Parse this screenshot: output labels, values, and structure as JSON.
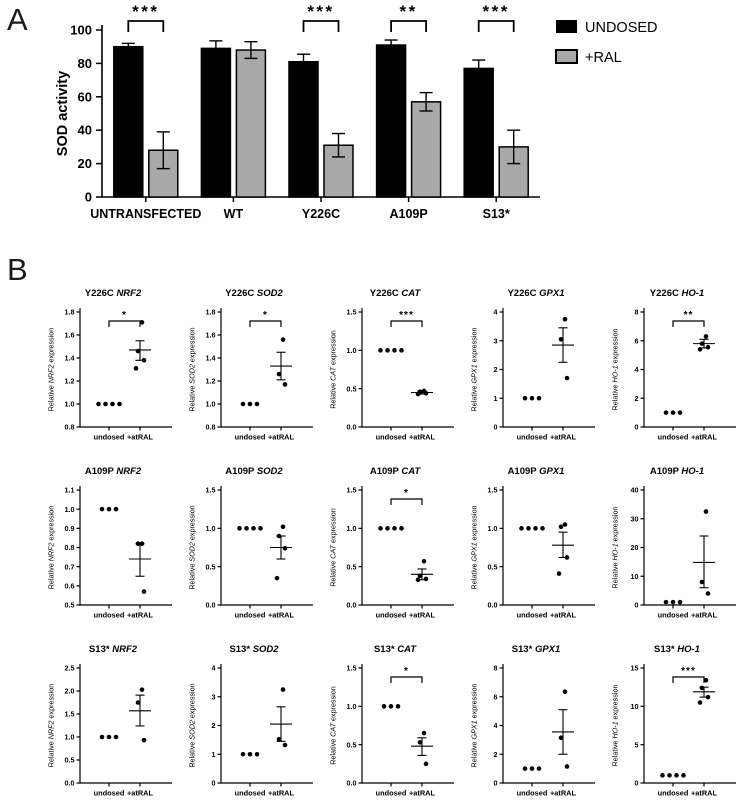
{
  "figure": {
    "panel_a_label": "A",
    "panel_b_label": "B"
  },
  "colors": {
    "undosed_fill": "#000000",
    "ral_fill": "#a9a9a9",
    "axis": "#000000",
    "background": "#ffffff"
  },
  "chart_data": [
    {
      "id": "sod-activity",
      "type": "bar",
      "ylabel": "SOD activity",
      "ylim": [
        0,
        100
      ],
      "yticks": [
        "0",
        "20",
        "40",
        "60",
        "80",
        "100"
      ],
      "categories": [
        "UNTRANSFECTED",
        "WT",
        "Y226C",
        "A109P",
        "S13*"
      ],
      "series": [
        {
          "name": "UNDOSED",
          "fill": "#000000",
          "values": [
            90,
            89,
            81,
            91,
            77
          ],
          "errors": [
            2,
            4.5,
            4.5,
            3,
            5
          ]
        },
        {
          "name": "+RAL",
          "fill": "#a9a9a9",
          "values": [
            28,
            88,
            31,
            57,
            30
          ],
          "errors": [
            11,
            5,
            7,
            5.5,
            10
          ]
        }
      ],
      "legend_position": "right",
      "significance": [
        {
          "category": "UNTRANSFECTED",
          "label": "***"
        },
        {
          "category": "Y226C",
          "label": "***"
        },
        {
          "category": "A109P",
          "label": "**"
        },
        {
          "category": "S13*",
          "label": "***"
        }
      ]
    },
    {
      "type": "scatter",
      "variant": "Y226C",
      "gene": "NRF2",
      "ylabel": "Relative NRF2 expression",
      "ylim": [
        0.8,
        1.8
      ],
      "yticks": [
        "0.8",
        "1.0",
        "1.2",
        "1.4",
        "1.6",
        "1.8"
      ],
      "categories": [
        "undosed",
        "+atRAL"
      ],
      "groups": [
        {
          "name": "undosed",
          "points": [
            1.0,
            1.0,
            1.0,
            1.0
          ]
        },
        {
          "name": "+atRAL",
          "points": [
            1.71,
            1.46,
            1.38,
            1.31
          ],
          "mean": 1.47,
          "sem": [
            1.38,
            1.55
          ]
        }
      ],
      "significance": "*"
    },
    {
      "type": "scatter",
      "variant": "Y226C",
      "gene": "SOD2",
      "ylabel": "Relative SOD2 expression",
      "ylim": [
        0.8,
        1.8
      ],
      "yticks": [
        "0.8",
        "1.0",
        "1.2",
        "1.4",
        "1.6",
        "1.8"
      ],
      "categories": [
        "undosed",
        "+atRAL"
      ],
      "groups": [
        {
          "name": "undosed",
          "points": [
            1.0,
            1.0,
            1.0
          ]
        },
        {
          "name": "+atRAL",
          "points": [
            1.56,
            1.26,
            1.17
          ],
          "mean": 1.33,
          "sem": [
            1.21,
            1.45
          ]
        }
      ],
      "significance": "*"
    },
    {
      "type": "scatter",
      "variant": "Y226C",
      "gene": "CAT",
      "ylabel": "Relative CAT expression",
      "ylim": [
        0,
        1.5
      ],
      "yticks": [
        "0.0",
        "0.5",
        "1.0",
        "1.5"
      ],
      "categories": [
        "undosed",
        "+atRAL"
      ],
      "groups": [
        {
          "name": "undosed",
          "points": [
            1.0,
            1.0,
            1.0,
            1.0
          ]
        },
        {
          "name": "+atRAL",
          "points": [
            0.47,
            0.46,
            0.44,
            0.43
          ],
          "mean": 0.45,
          "sem": [
            0.43,
            0.47
          ]
        }
      ],
      "significance": "***"
    },
    {
      "type": "scatter",
      "variant": "Y226C",
      "gene": "GPX1",
      "ylabel": "Relative GPX1 expression",
      "ylim": [
        0,
        4
      ],
      "yticks": [
        "0",
        "1",
        "2",
        "3",
        "4"
      ],
      "categories": [
        "undosed",
        "+atRAL"
      ],
      "groups": [
        {
          "name": "undosed",
          "points": [
            1.0,
            1.0,
            1.0
          ]
        },
        {
          "name": "+atRAL",
          "points": [
            3.75,
            3.05,
            1.7
          ],
          "mean": 2.85,
          "sem": [
            2.25,
            3.45
          ]
        }
      ],
      "significance": null
    },
    {
      "type": "scatter",
      "variant": "Y226C",
      "gene": "HO-1",
      "ylabel": "Relative HO-1 expression",
      "ylim": [
        0,
        8
      ],
      "yticks": [
        "0",
        "2",
        "4",
        "6",
        "8"
      ],
      "categories": [
        "undosed",
        "+atRAL"
      ],
      "groups": [
        {
          "name": "undosed",
          "points": [
            1.0,
            1.0,
            1.0
          ]
        },
        {
          "name": "+atRAL",
          "points": [
            6.3,
            5.8,
            5.55,
            5.4
          ],
          "mean": 5.8,
          "sem": [
            5.5,
            6.1
          ]
        }
      ],
      "significance": "**"
    },
    {
      "type": "scatter",
      "variant": "A109P",
      "gene": "NRF2",
      "ylabel": "Relative NRF2 expression",
      "ylim": [
        0.5,
        1.1
      ],
      "yticks": [
        "0.5",
        "0.6",
        "0.7",
        "0.8",
        "0.9",
        "1.0",
        "1.1"
      ],
      "categories": [
        "undosed",
        "+atRAL"
      ],
      "groups": [
        {
          "name": "undosed",
          "points": [
            1.0,
            1.0,
            1.0
          ]
        },
        {
          "name": "+atRAL",
          "points": [
            0.82,
            0.82,
            0.57
          ],
          "mean": 0.74,
          "sem": [
            0.65,
            0.82
          ]
        }
      ],
      "significance": null
    },
    {
      "type": "scatter",
      "variant": "A109P",
      "gene": "SOD2",
      "ylabel": "Relative SOD2 expression",
      "ylim": [
        0,
        1.5
      ],
      "yticks": [
        "0.0",
        "0.5",
        "1.0",
        "1.5"
      ],
      "categories": [
        "undosed",
        "+atRAL"
      ],
      "groups": [
        {
          "name": "undosed",
          "points": [
            1.0,
            1.0,
            1.0,
            1.0
          ]
        },
        {
          "name": "+atRAL",
          "points": [
            1.02,
            0.9,
            0.74,
            0.35
          ],
          "mean": 0.75,
          "sem": [
            0.6,
            0.9
          ]
        }
      ],
      "significance": null
    },
    {
      "type": "scatter",
      "variant": "A109P",
      "gene": "CAT",
      "ylabel": "Relative CAT expression",
      "ylim": [
        0,
        1.5
      ],
      "yticks": [
        "0.0",
        "0.5",
        "1.0",
        "1.5"
      ],
      "categories": [
        "undosed",
        "+atRAL"
      ],
      "groups": [
        {
          "name": "undosed",
          "points": [
            1.0,
            1.0,
            1.0,
            1.0
          ]
        },
        {
          "name": "+atRAL",
          "points": [
            0.57,
            0.38,
            0.34,
            0.33
          ],
          "mean": 0.4,
          "sem": [
            0.33,
            0.47
          ]
        }
      ],
      "significance": "*"
    },
    {
      "type": "scatter",
      "variant": "A109P",
      "gene": "GPX1",
      "ylabel": "Relative GPX1 expression",
      "ylim": [
        0,
        1.5
      ],
      "yticks": [
        "0.0",
        "0.5",
        "1.0",
        "1.5"
      ],
      "categories": [
        "undosed",
        "+atRAL"
      ],
      "groups": [
        {
          "name": "undosed",
          "points": [
            1.0,
            1.0,
            1.0,
            1.0
          ]
        },
        {
          "name": "+atRAL",
          "points": [
            1.05,
            1.02,
            0.62,
            0.41
          ],
          "mean": 0.78,
          "sem": [
            0.62,
            0.95
          ]
        }
      ],
      "significance": null
    },
    {
      "type": "scatter",
      "variant": "A109P",
      "gene": "HO-1",
      "ylabel": "Relative HO-1 expression",
      "ylim": [
        0,
        40
      ],
      "yticks": [
        "0",
        "10",
        "20",
        "30",
        "40"
      ],
      "categories": [
        "undosed",
        "+atRAL"
      ],
      "groups": [
        {
          "name": "undosed",
          "points": [
            1.0,
            1.0,
            1.0
          ]
        },
        {
          "name": "+atRAL",
          "points": [
            32.5,
            8,
            4
          ],
          "mean": 14.8,
          "sem": [
            6,
            24
          ]
        }
      ],
      "significance": null
    },
    {
      "type": "scatter",
      "variant": "S13*",
      "gene": "NRF2",
      "ylabel": "Relative NRF2 expression",
      "ylim": [
        0,
        2.5
      ],
      "yticks": [
        "0.0",
        "0.5",
        "1.0",
        "1.5",
        "2.0",
        "2.5"
      ],
      "categories": [
        "undosed",
        "+atRAL"
      ],
      "groups": [
        {
          "name": "undosed",
          "points": [
            1.0,
            1.0,
            1.0
          ]
        },
        {
          "name": "+atRAL",
          "points": [
            2.03,
            1.75,
            0.93
          ],
          "mean": 1.57,
          "sem": [
            1.24,
            1.91
          ]
        }
      ],
      "significance": null
    },
    {
      "type": "scatter",
      "variant": "S13*",
      "gene": "SOD2",
      "ylabel": "Relative SOD2 expression",
      "ylim": [
        0,
        4
      ],
      "yticks": [
        "0",
        "1",
        "2",
        "3",
        "4"
      ],
      "categories": [
        "undosed",
        "+atRAL"
      ],
      "groups": [
        {
          "name": "undosed",
          "points": [
            1.0,
            1.0,
            1.0
          ]
        },
        {
          "name": "+atRAL",
          "points": [
            3.25,
            1.52,
            1.32
          ],
          "mean": 2.05,
          "sem": [
            1.45,
            2.65
          ]
        }
      ],
      "significance": null
    },
    {
      "type": "scatter",
      "variant": "S13*",
      "gene": "CAT",
      "ylabel": "Relative CAT expression",
      "ylim": [
        0,
        1.5
      ],
      "yticks": [
        "0.0",
        "0.5",
        "1.0",
        "1.5"
      ],
      "categories": [
        "undosed",
        "+atRAL"
      ],
      "groups": [
        {
          "name": "undosed",
          "points": [
            1.0,
            1.0,
            1.0
          ]
        },
        {
          "name": "+atRAL",
          "points": [
            0.65,
            0.53,
            0.25
          ],
          "mean": 0.48,
          "sem": [
            0.36,
            0.59
          ]
        }
      ],
      "significance": "*"
    },
    {
      "type": "scatter",
      "variant": "S13*",
      "gene": "GPX1",
      "ylabel": "Relative GPX1 expression",
      "ylim": [
        0,
        8
      ],
      "yticks": [
        "0",
        "2",
        "4",
        "6",
        "8"
      ],
      "categories": [
        "undosed",
        "+atRAL"
      ],
      "groups": [
        {
          "name": "undosed",
          "points": [
            1.0,
            1.0,
            1.0
          ]
        },
        {
          "name": "+atRAL",
          "points": [
            6.35,
            3.15,
            1.15
          ],
          "mean": 3.55,
          "sem": [
            2.0,
            5.1
          ]
        }
      ],
      "significance": null
    },
    {
      "type": "scatter",
      "variant": "S13*",
      "gene": "HO-1",
      "ylabel": "Relative HO-1 expression",
      "ylim": [
        0,
        15
      ],
      "yticks": [
        "0",
        "5",
        "10",
        "15"
      ],
      "categories": [
        "undosed",
        "+atRAL"
      ],
      "groups": [
        {
          "name": "undosed",
          "points": [
            1.0,
            1.0,
            1.0,
            1.0
          ]
        },
        {
          "name": "+atRAL",
          "points": [
            13.4,
            12.4,
            11.2,
            10.5
          ],
          "mean": 11.9,
          "sem": [
            11.2,
            12.5
          ]
        }
      ],
      "significance": "***"
    }
  ]
}
